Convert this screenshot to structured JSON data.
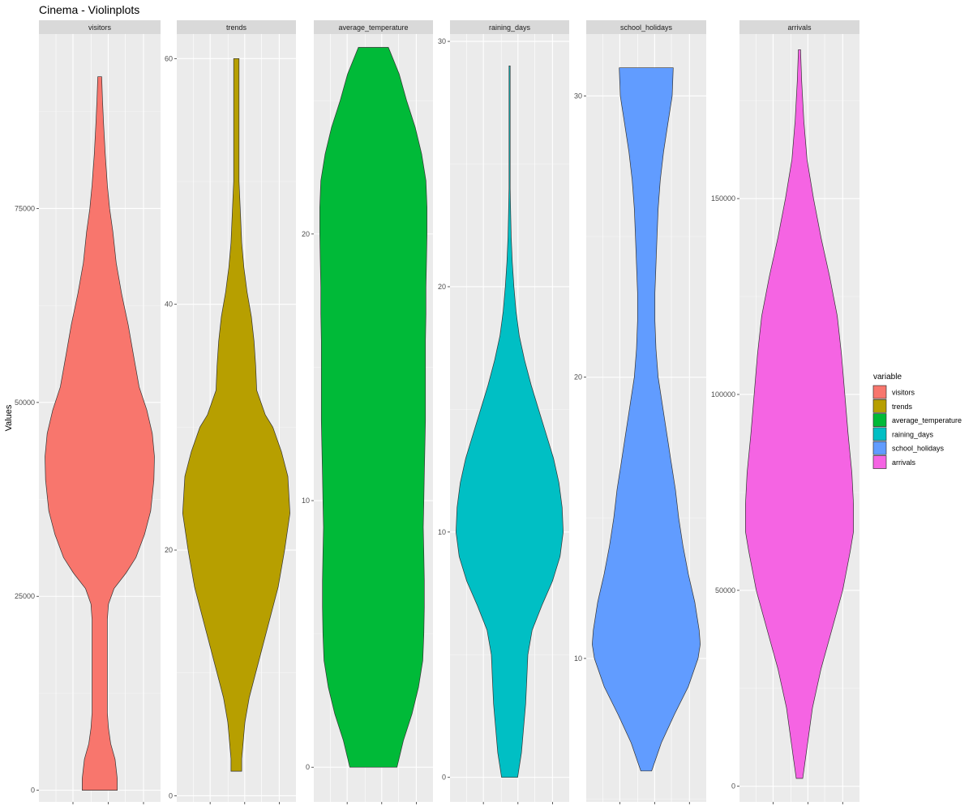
{
  "chart_data": {
    "type": "violin",
    "title": "Cinema - Violinplots",
    "ylabel": "Values",
    "legend": {
      "title": "variable",
      "position": "right"
    },
    "grid": true,
    "facets": [
      {
        "name": "visitors",
        "color": "#F8766D",
        "ylim": [
          -1500,
          97500
        ],
        "ticks": [
          0,
          25000,
          50000,
          75000
        ],
        "tick_labels": [
          "0",
          "25000",
          "50000",
          "75000"
        ],
        "min": 0,
        "max": 92000,
        "density": [
          [
            0,
            0.32
          ],
          [
            1500,
            0.32
          ],
          [
            4000,
            0.28
          ],
          [
            6000,
            0.2
          ],
          [
            8000,
            0.16
          ],
          [
            10000,
            0.14
          ],
          [
            13000,
            0.14
          ],
          [
            17000,
            0.14
          ],
          [
            20000,
            0.14
          ],
          [
            22000,
            0.14
          ],
          [
            24000,
            0.16
          ],
          [
            26000,
            0.26
          ],
          [
            28000,
            0.48
          ],
          [
            30000,
            0.66
          ],
          [
            33000,
            0.82
          ],
          [
            36000,
            0.93
          ],
          [
            40000,
            0.99
          ],
          [
            43000,
            1.0
          ],
          [
            46000,
            0.96
          ],
          [
            49000,
            0.86
          ],
          [
            52000,
            0.72
          ],
          [
            56000,
            0.62
          ],
          [
            60000,
            0.52
          ],
          [
            64000,
            0.4
          ],
          [
            68000,
            0.3
          ],
          [
            72000,
            0.24
          ],
          [
            75000,
            0.18
          ],
          [
            78000,
            0.14
          ],
          [
            82000,
            0.1
          ],
          [
            86000,
            0.07
          ],
          [
            89000,
            0.05
          ],
          [
            92000,
            0.035
          ]
        ]
      },
      {
        "name": "trends",
        "color": "#B79F00",
        "ylim": [
          -0.5,
          62
        ],
        "ticks": [
          0,
          20,
          40,
          60
        ],
        "tick_labels": [
          "0",
          "20",
          "40",
          "60"
        ],
        "min": 2,
        "max": 60,
        "density": [
          [
            2,
            0.1
          ],
          [
            3,
            0.1
          ],
          [
            6,
            0.16
          ],
          [
            8,
            0.24
          ],
          [
            11,
            0.42
          ],
          [
            14,
            0.6
          ],
          [
            17,
            0.78
          ],
          [
            20,
            0.9
          ],
          [
            23,
            1.0
          ],
          [
            26,
            0.96
          ],
          [
            28,
            0.84
          ],
          [
            30,
            0.68
          ],
          [
            31,
            0.54
          ],
          [
            32,
            0.46
          ],
          [
            33,
            0.38
          ],
          [
            35,
            0.36
          ],
          [
            37,
            0.33
          ],
          [
            39,
            0.28
          ],
          [
            41,
            0.2
          ],
          [
            43,
            0.14
          ],
          [
            45,
            0.1
          ],
          [
            47,
            0.08
          ],
          [
            50,
            0.05
          ],
          [
            52,
            0.05
          ],
          [
            55,
            0.05
          ],
          [
            58,
            0.05
          ],
          [
            60,
            0.05
          ]
        ]
      },
      {
        "name": "average_temperature",
        "color": "#00BA38",
        "ylim": [
          -1.3,
          27.5
        ],
        "ticks": [
          0,
          10,
          20
        ],
        "tick_labels": [
          "0",
          "10",
          "20"
        ],
        "min": 0,
        "max": 27,
        "density": [
          [
            0,
            0.44
          ],
          [
            1,
            0.56
          ],
          [
            2,
            0.72
          ],
          [
            3,
            0.84
          ],
          [
            4,
            0.92
          ],
          [
            5,
            0.94
          ],
          [
            6,
            0.95
          ],
          [
            7,
            0.95
          ],
          [
            8,
            0.94
          ],
          [
            9,
            0.93
          ],
          [
            10,
            0.94
          ],
          [
            11,
            0.95
          ],
          [
            12,
            0.96
          ],
          [
            13,
            0.97
          ],
          [
            14,
            0.97
          ],
          [
            15,
            0.97
          ],
          [
            16,
            0.97
          ],
          [
            17,
            0.98
          ],
          [
            18,
            0.98
          ],
          [
            19,
            0.99
          ],
          [
            20,
            1.0
          ],
          [
            21,
            1.0
          ],
          [
            22,
            0.98
          ],
          [
            23,
            0.9
          ],
          [
            24,
            0.78
          ],
          [
            25,
            0.62
          ],
          [
            26,
            0.48
          ],
          [
            27,
            0.28
          ]
        ]
      },
      {
        "name": "raining_days",
        "color": "#00BFC4",
        "ylim": [
          -1.0,
          30.3
        ],
        "ticks": [
          0,
          10,
          20,
          30
        ],
        "tick_labels": [
          "0",
          "10",
          "20",
          "30"
        ],
        "min": 0,
        "max": 29,
        "density": [
          [
            0,
            0.15
          ],
          [
            1,
            0.22
          ],
          [
            2,
            0.26
          ],
          [
            3,
            0.3
          ],
          [
            4,
            0.32
          ],
          [
            5,
            0.34
          ],
          [
            6,
            0.42
          ],
          [
            7,
            0.6
          ],
          [
            8,
            0.8
          ],
          [
            9,
            0.94
          ],
          [
            10,
            1.0
          ],
          [
            11,
            0.98
          ],
          [
            12,
            0.92
          ],
          [
            13,
            0.82
          ],
          [
            14,
            0.68
          ],
          [
            15,
            0.54
          ],
          [
            16,
            0.4
          ],
          [
            17,
            0.28
          ],
          [
            18,
            0.18
          ],
          [
            19,
            0.12
          ],
          [
            20,
            0.08
          ],
          [
            21,
            0.05
          ],
          [
            22,
            0.03
          ],
          [
            23,
            0.02
          ],
          [
            24,
            0.01
          ],
          [
            25,
            0.01
          ],
          [
            26,
            0.01
          ],
          [
            27,
            0.01
          ],
          [
            28,
            0.01
          ],
          [
            29,
            0.01
          ]
        ]
      },
      {
        "name": "school_holidays",
        "color": "#619CFF",
        "ylim": [
          4.9,
          32.2
        ],
        "ticks": [
          10,
          20,
          30
        ],
        "tick_labels": [
          "10",
          "20",
          "30"
        ],
        "min": 6,
        "max": 31,
        "density": [
          [
            6,
            0.1
          ],
          [
            7,
            0.28
          ],
          [
            8,
            0.52
          ],
          [
            9,
            0.78
          ],
          [
            10,
            0.96
          ],
          [
            10.5,
            1.0
          ],
          [
            11,
            0.98
          ],
          [
            12,
            0.9
          ],
          [
            13,
            0.78
          ],
          [
            14,
            0.68
          ],
          [
            15,
            0.6
          ],
          [
            16,
            0.54
          ],
          [
            17,
            0.46
          ],
          [
            18,
            0.38
          ],
          [
            19,
            0.3
          ],
          [
            20,
            0.22
          ],
          [
            21,
            0.18
          ],
          [
            22,
            0.16
          ],
          [
            23,
            0.16
          ],
          [
            24,
            0.18
          ],
          [
            25,
            0.2
          ],
          [
            26,
            0.22
          ],
          [
            27,
            0.26
          ],
          [
            28,
            0.32
          ],
          [
            29,
            0.4
          ],
          [
            30,
            0.48
          ],
          [
            31,
            0.5
          ]
        ]
      },
      {
        "name": "arrivals",
        "color": "#F564E3",
        "ylim": [
          -4000,
          192000
        ],
        "ticks": [
          0,
          50000,
          100000,
          150000
        ],
        "tick_labels": [
          "0",
          "50000",
          "100000",
          "150000"
        ],
        "min": 2000,
        "max": 188000,
        "density": [
          [
            2000,
            0.06
          ],
          [
            6000,
            0.1
          ],
          [
            12000,
            0.16
          ],
          [
            20000,
            0.24
          ],
          [
            30000,
            0.4
          ],
          [
            40000,
            0.6
          ],
          [
            50000,
            0.8
          ],
          [
            60000,
            0.94
          ],
          [
            65000,
            1.0
          ],
          [
            72000,
            1.0
          ],
          [
            80000,
            0.97
          ],
          [
            90000,
            0.9
          ],
          [
            100000,
            0.84
          ],
          [
            110000,
            0.78
          ],
          [
            120000,
            0.7
          ],
          [
            130000,
            0.56
          ],
          [
            140000,
            0.4
          ],
          [
            150000,
            0.26
          ],
          [
            160000,
            0.14
          ],
          [
            170000,
            0.08
          ],
          [
            180000,
            0.04
          ],
          [
            188000,
            0.02
          ]
        ]
      }
    ]
  }
}
